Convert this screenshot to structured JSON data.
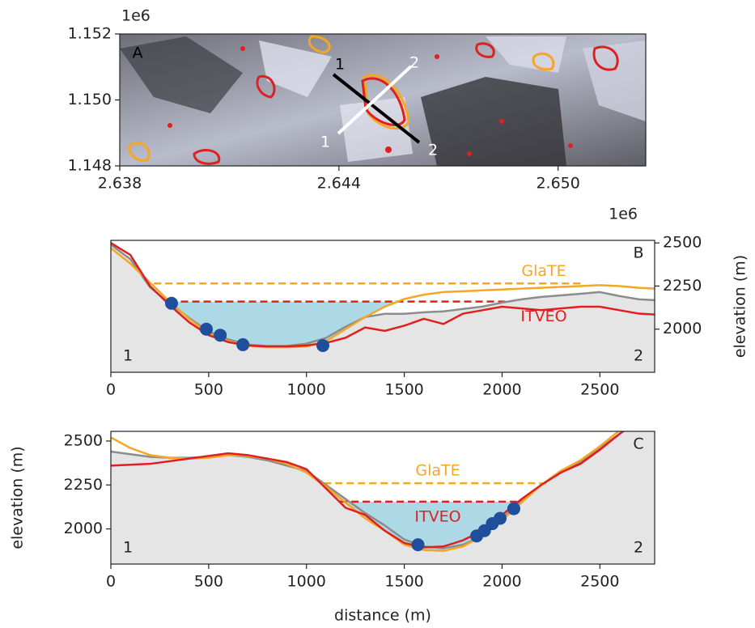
{
  "chart_data": [
    {
      "type": "map",
      "panel_label": "A",
      "xlim": [
        2.638,
        2.6524
      ],
      "xticks": [
        2.638,
        2.644,
        {
          "value": 2.65,
          "label": "2.650"
        }
      ],
      "x_offset": "1e6",
      "ylim": [
        1.148,
        1.152
      ],
      "yticks": [
        1.148,
        {
          "value": 1.15,
          "label": "1.150"
        },
        1.152
      ],
      "y_offset": "1e6",
      "profile_labels": [
        "1",
        "2",
        "1",
        "2"
      ]
    },
    {
      "type": "line",
      "panel_label": "B",
      "start_label": "1",
      "end_label": "2",
      "ylabel": "elevation (m)",
      "yaxis_side": "right",
      "xlim": [
        0,
        2780
      ],
      "xticks": [
        0,
        500,
        1000,
        1500,
        2000,
        2500
      ],
      "ylim": [
        1750,
        2515
      ],
      "yticks": [
        2000,
        2250,
        2500
      ],
      "x": [
        0,
        100,
        200,
        300,
        400,
        500,
        600,
        700,
        800,
        900,
        1000,
        1100,
        1200,
        1300,
        1400,
        1500,
        1600,
        1700,
        1800,
        1900,
        2000,
        2100,
        2200,
        2300,
        2400,
        2500,
        2600,
        2700,
        2780
      ],
      "series": [
        {
          "color": "#f5a623",
          "values": [
            2470,
            2380,
            2270,
            2160,
            2060,
            1975,
            1930,
            1905,
            1895,
            1895,
            1900,
            1930,
            2000,
            2070,
            2130,
            2175,
            2200,
            2215,
            2220,
            2225,
            2230,
            2235,
            2240,
            2245,
            2250,
            2255,
            2250,
            2240,
            2235
          ]
        },
        {
          "color": "#8c8c8c",
          "values": [
            2490,
            2406,
            2243,
            2150,
            2065,
            1986,
            1940,
            1911,
            1902,
            1902,
            1916,
            1949,
            2014,
            2070,
            2089,
            2089,
            2098,
            2103,
            2117,
            2131,
            2154,
            2173,
            2187,
            2196,
            2205,
            2215,
            2192,
            2173,
            2168
          ]
        },
        {
          "color": "#e02020",
          "values": [
            2500,
            2430,
            2250,
            2140,
            2040,
            1965,
            1925,
            1905,
            1900,
            1900,
            1905,
            1920,
            1950,
            2010,
            1990,
            2020,
            2060,
            2030,
            2090,
            2110,
            2130,
            2120,
            2110,
            2120,
            2130,
            2130,
            2110,
            2090,
            2085
          ]
        }
      ],
      "levels": [
        {
          "name": "GlaTE",
          "color": "#f5a623",
          "value": 2265,
          "xmin": 220,
          "xmax": 2410
        },
        {
          "name": "ITVEO",
          "color": "#e02020",
          "value": 2160,
          "xmin": 300,
          "xmax": 2040
        }
      ],
      "lake_color": "#add8e6",
      "points": {
        "color": "#1f4e9c",
        "x": [
          310,
          488,
          559,
          675,
          1084
        ],
        "y": [
          2150,
          2000,
          1965,
          1910,
          1905
        ]
      }
    },
    {
      "type": "line",
      "panel_label": "C",
      "start_label": "1",
      "end_label": "2",
      "ylabel": "elevation (m)",
      "xlabel": "distance (m)",
      "yaxis_side": "left",
      "xlim": [
        0,
        2780
      ],
      "xticks": [
        0,
        500,
        1000,
        1500,
        2000,
        2500
      ],
      "ylim": [
        1800,
        2555
      ],
      "yticks": [
        2000,
        2250,
        2500
      ],
      "x": [
        0,
        100,
        200,
        300,
        400,
        500,
        600,
        700,
        800,
        900,
        1000,
        1100,
        1200,
        1300,
        1400,
        1500,
        1600,
        1700,
        1800,
        1900,
        2000,
        2100,
        2200,
        2300,
        2400,
        2500,
        2600,
        2700,
        2780
      ],
      "series": [
        {
          "color": "#f5a623",
          "values": [
            2520,
            2460,
            2420,
            2405,
            2400,
            2405,
            2420,
            2415,
            2400,
            2370,
            2320,
            2240,
            2150,
            2060,
            1990,
            1910,
            1880,
            1875,
            1900,
            1960,
            2050,
            2150,
            2250,
            2330,
            2390,
            2470,
            2560,
            2640,
            2690
          ]
        },
        {
          "color": "#8c8c8c",
          "values": [
            2440,
            2425,
            2410,
            2405,
            2405,
            2410,
            2420,
            2410,
            2390,
            2360,
            2330,
            2250,
            2170,
            2090,
            2020,
            1940,
            1900,
            1890,
            1910,
            1960,
            2060,
            2160,
            2250,
            2330,
            2380,
            2460,
            2540,
            2620,
            2660
          ]
        },
        {
          "color": "#e02020",
          "values": [
            2360,
            2365,
            2370,
            2385,
            2400,
            2415,
            2430,
            2420,
            2400,
            2380,
            2340,
            2230,
            2120,
            2080,
            1990,
            1920,
            1895,
            1900,
            1935,
            1990,
            2080,
            2170,
            2250,
            2320,
            2370,
            2450,
            2540,
            2620,
            2660
          ]
        }
      ],
      "levels": [
        {
          "name": "GlaTE",
          "color": "#f5a623",
          "value": 2260,
          "xmin": 1089,
          "xmax": 2247
        },
        {
          "name": "ITVEO",
          "color": "#e02020",
          "value": 2155,
          "xmin": 1171,
          "xmax": 2082
        }
      ],
      "lake_color": "#add8e6",
      "points": {
        "color": "#1f4e9c",
        "x": [
          1570,
          1870,
          1910,
          1950,
          1990,
          2060
        ],
        "y": [
          1910,
          1960,
          1990,
          2030,
          2060,
          2115
        ]
      }
    }
  ]
}
